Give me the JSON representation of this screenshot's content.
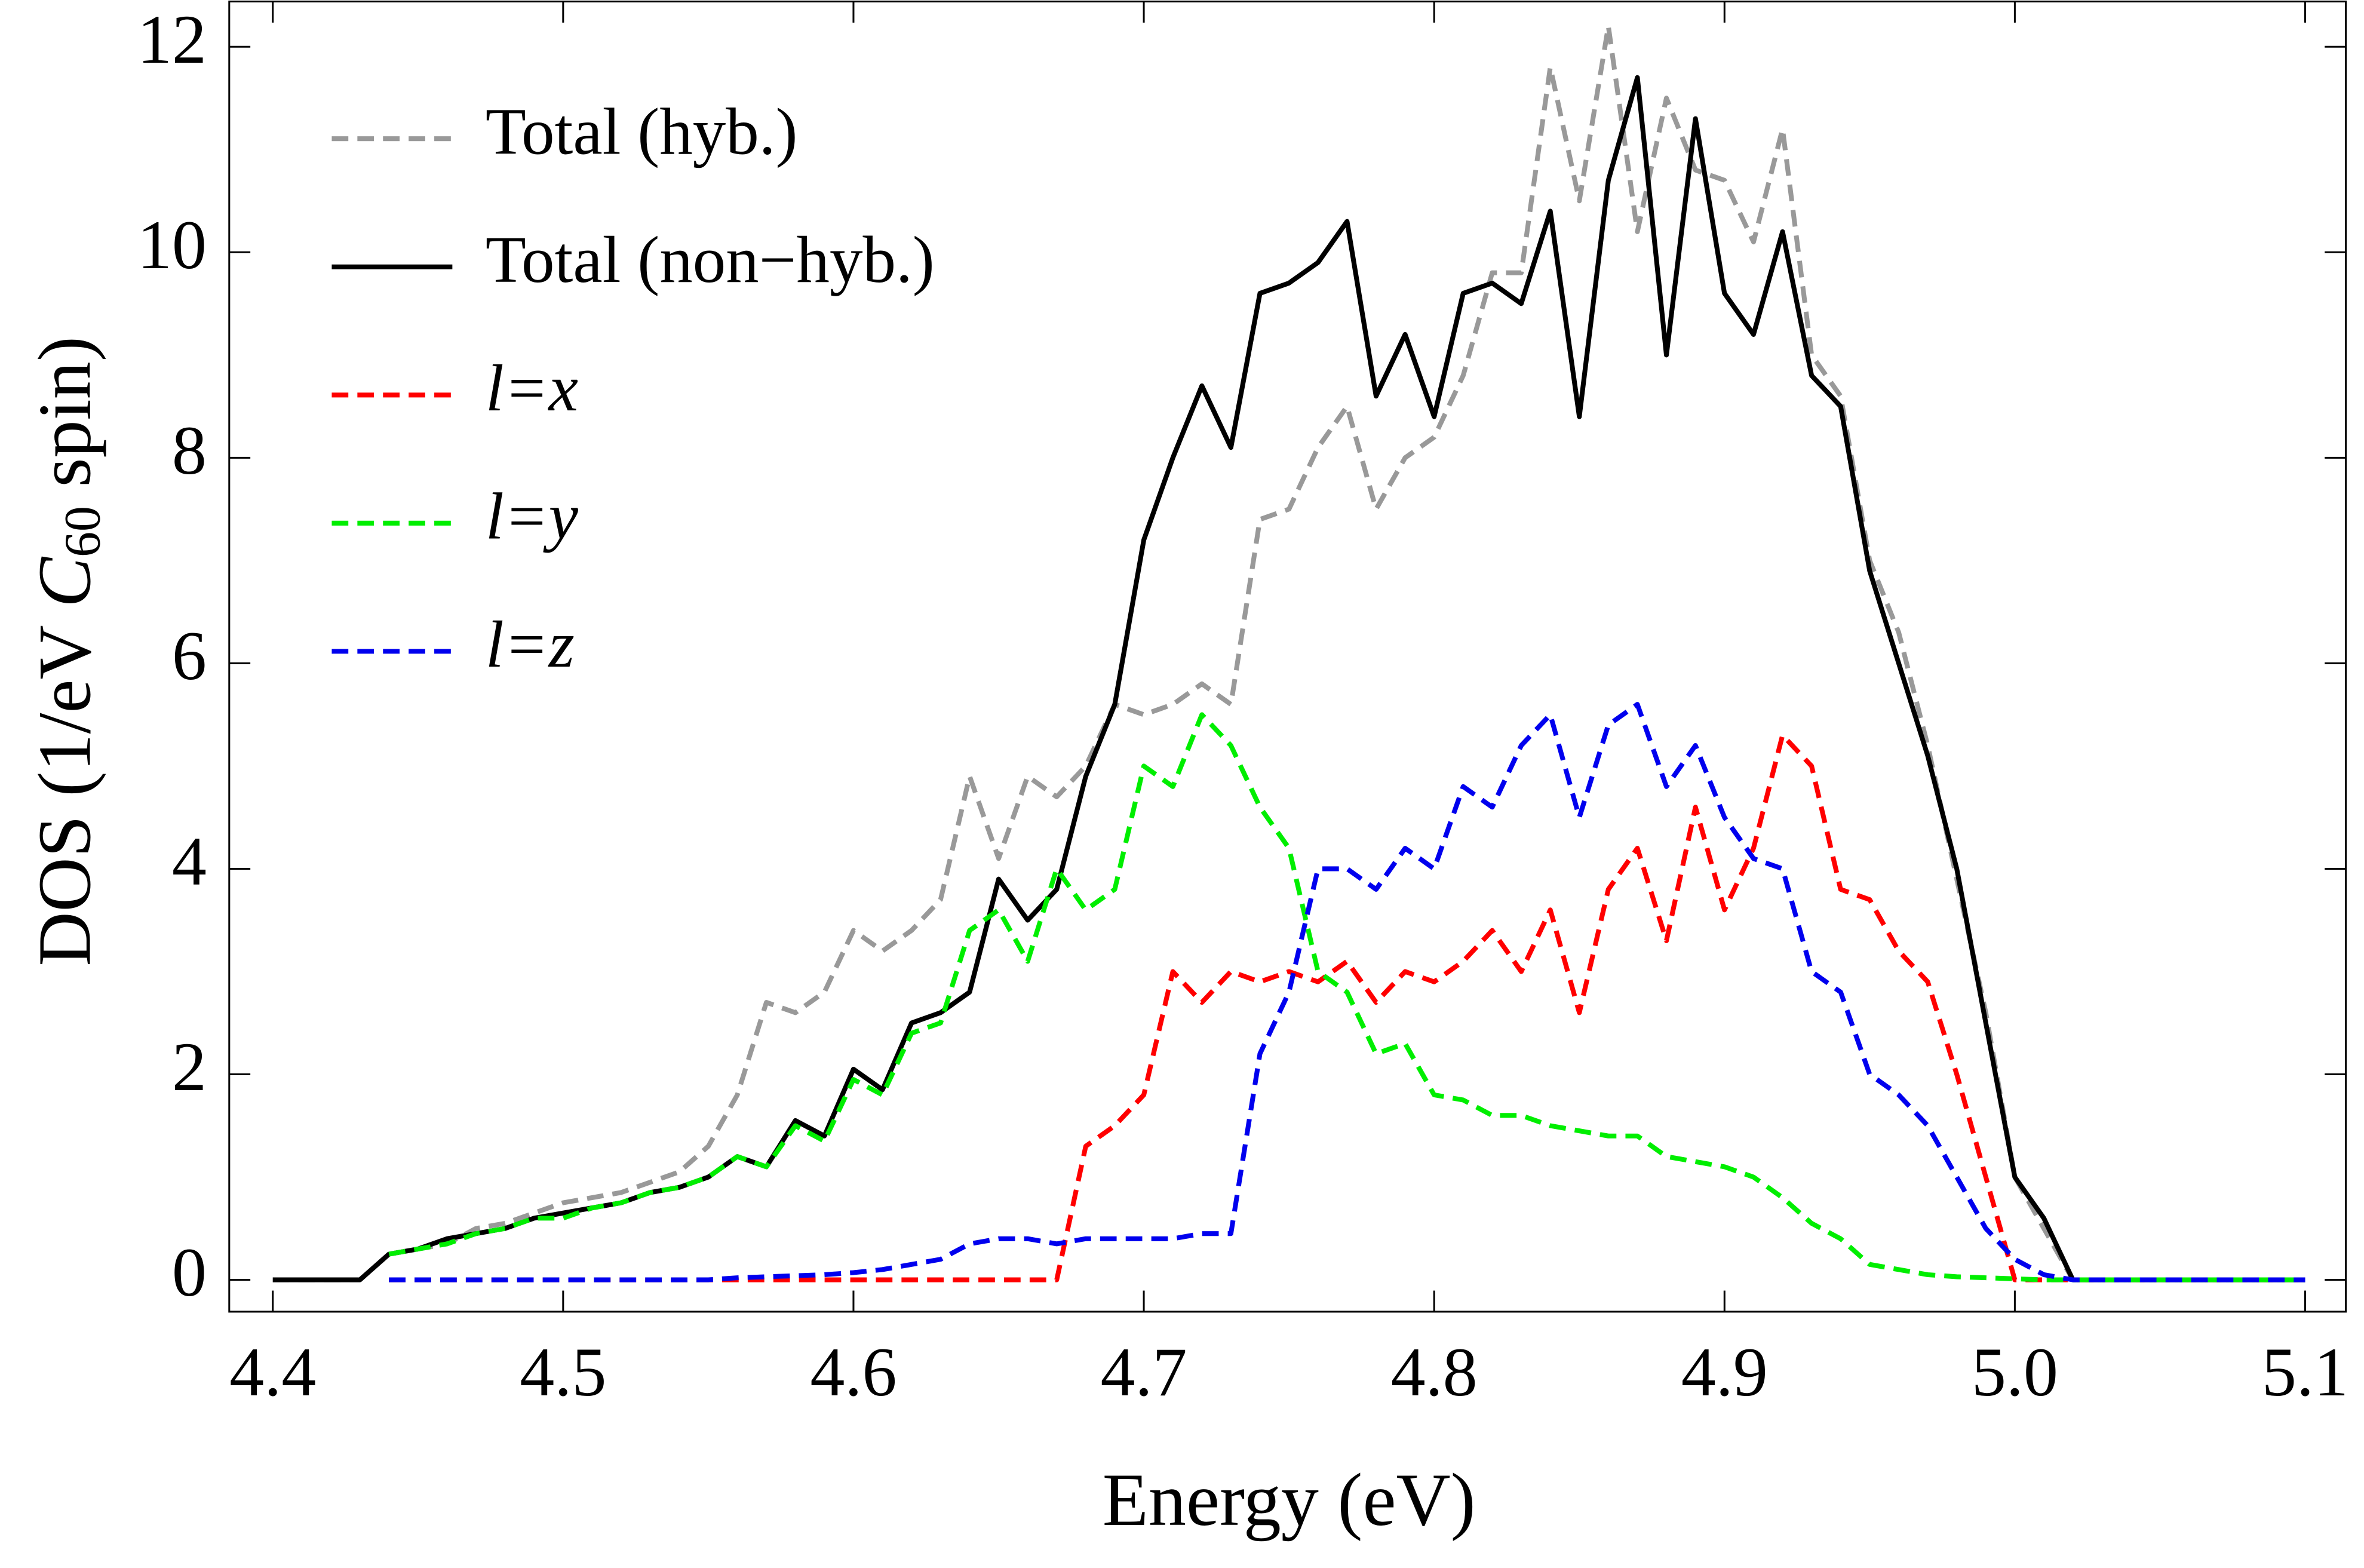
{
  "chart_data": {
    "type": "line",
    "xlabel": "Energy (eV)",
    "ylabel_parts": [
      "DOS (1/eV ",
      "C",
      "60",
      " spin)"
    ],
    "x": [
      4.4,
      4.41,
      4.42,
      4.43,
      4.44,
      4.45,
      4.46,
      4.47,
      4.48,
      4.49,
      4.5,
      4.51,
      4.52,
      4.53,
      4.54,
      4.55,
      4.56,
      4.57,
      4.58,
      4.59,
      4.6,
      4.61,
      4.62,
      4.63,
      4.64,
      4.65,
      4.66,
      4.67,
      4.68,
      4.69,
      4.7,
      4.71,
      4.72,
      4.73,
      4.74,
      4.75,
      4.76,
      4.77,
      4.78,
      4.79,
      4.8,
      4.81,
      4.82,
      4.83,
      4.84,
      4.85,
      4.86,
      4.87,
      4.88,
      4.89,
      4.9,
      4.91,
      4.92,
      4.93,
      4.94,
      4.95,
      4.96,
      4.97,
      4.98,
      4.99,
      5.0,
      5.01,
      5.02,
      5.03,
      5.04,
      5.05,
      5.06,
      5.07,
      5.08,
      5.09,
      5.1
    ],
    "series": [
      {
        "name": "Total (hyb.)",
        "color": "#999999",
        "dashed": true,
        "values": [
          0,
          0,
          0,
          0,
          0.25,
          0.3,
          0.35,
          0.5,
          0.55,
          0.65,
          0.75,
          0.8,
          0.85,
          0.95,
          1.05,
          1.3,
          1.8,
          2.7,
          2.6,
          2.8,
          3.4,
          3.2,
          3.4,
          3.7,
          4.9,
          4.1,
          4.9,
          4.7,
          5.0,
          5.6,
          5.5,
          5.6,
          5.8,
          5.6,
          7.4,
          7.5,
          8.1,
          8.5,
          7.5,
          8.0,
          8.2,
          8.8,
          9.8,
          9.8,
          11.8,
          10.5,
          12.2,
          10.2,
          11.5,
          10.8,
          10.7,
          10.1,
          11.2,
          9.0,
          8.6,
          7.0,
          6.3,
          5.2,
          3.9,
          2.6,
          1.0,
          0.5,
          0,
          0,
          0,
          0,
          0,
          0,
          0,
          0,
          0
        ]
      },
      {
        "name": "Total (non−hyb.)",
        "color": "#000000",
        "dashed": false,
        "values": [
          0,
          0,
          0,
          0,
          0.25,
          0.3,
          0.4,
          0.45,
          0.5,
          0.6,
          0.65,
          0.7,
          0.75,
          0.85,
          0.9,
          1.0,
          1.2,
          1.1,
          1.55,
          1.4,
          2.05,
          1.85,
          2.5,
          2.6,
          2.8,
          3.9,
          3.5,
          3.8,
          4.9,
          5.6,
          7.2,
          8.0,
          8.7,
          8.1,
          9.6,
          9.7,
          9.9,
          10.3,
          8.6,
          9.2,
          8.4,
          9.6,
          9.7,
          9.5,
          10.4,
          8.4,
          10.7,
          11.7,
          9.0,
          11.3,
          9.6,
          9.2,
          10.2,
          8.8,
          8.5,
          6.9,
          6.0,
          5.1,
          4.0,
          2.5,
          1.0,
          0.6,
          0,
          0,
          0,
          0,
          0,
          0,
          0,
          0,
          0
        ]
      },
      {
        "name": "l=x",
        "color": "#ff0000",
        "dashed": true,
        "values": [
          null,
          null,
          null,
          null,
          0,
          0,
          0,
          0,
          0,
          0,
          0,
          0,
          0,
          0,
          0,
          0,
          0,
          0,
          0,
          0,
          0,
          0,
          0,
          0,
          0,
          0,
          0,
          0,
          1.3,
          1.5,
          1.8,
          3.0,
          2.7,
          3.0,
          2.9,
          3.0,
          2.9,
          3.1,
          2.7,
          3.0,
          2.9,
          3.1,
          3.4,
          3.0,
          3.6,
          2.6,
          3.8,
          4.2,
          3.3,
          4.6,
          3.6,
          4.2,
          5.3,
          5.0,
          3.8,
          3.7,
          3.2,
          2.9,
          2.0,
          1.0,
          0,
          0,
          0,
          0,
          0,
          0,
          0,
          0,
          0,
          0,
          0
        ]
      },
      {
        "name": "l=y",
        "color": "#00ee00",
        "dashed": true,
        "values": [
          null,
          null,
          null,
          null,
          0.25,
          0.3,
          0.35,
          0.45,
          0.5,
          0.6,
          0.6,
          0.7,
          0.75,
          0.85,
          0.9,
          1.0,
          1.2,
          1.1,
          1.5,
          1.35,
          1.95,
          1.8,
          2.4,
          2.5,
          3.4,
          3.6,
          3.1,
          4.0,
          3.6,
          3.8,
          5.0,
          4.8,
          5.5,
          5.2,
          4.6,
          4.2,
          3.0,
          2.8,
          2.2,
          2.3,
          1.8,
          1.75,
          1.6,
          1.6,
          1.5,
          1.45,
          1.4,
          1.4,
          1.2,
          1.15,
          1.1,
          1.0,
          0.8,
          0.55,
          0.4,
          0.15,
          0.1,
          0.05,
          0.03,
          0.02,
          0.01,
          0,
          0,
          0,
          0,
          0,
          0,
          0,
          0,
          0,
          0
        ]
      },
      {
        "name": "l=z",
        "color": "#0000ee",
        "dashed": true,
        "values": [
          null,
          null,
          null,
          null,
          0,
          0,
          0,
          0,
          0,
          0,
          0,
          0,
          0,
          0,
          0,
          0,
          0.02,
          0.03,
          0.04,
          0.05,
          0.07,
          0.1,
          0.15,
          0.2,
          0.35,
          0.4,
          0.4,
          0.35,
          0.4,
          0.4,
          0.4,
          0.4,
          0.45,
          0.45,
          2.2,
          2.8,
          4.0,
          4.0,
          3.8,
          4.2,
          4.0,
          4.8,
          4.6,
          5.2,
          5.5,
          4.5,
          5.4,
          5.6,
          4.8,
          5.2,
          4.5,
          4.1,
          4.0,
          3.0,
          2.8,
          2.0,
          1.8,
          1.5,
          1.0,
          0.5,
          0.2,
          0.05,
          0,
          0,
          0,
          0,
          0,
          0,
          0,
          0,
          0
        ]
      }
    ],
    "xlim": [
      4.385,
      5.114
    ],
    "ylim": [
      -0.31,
      12.44
    ],
    "xticks": [
      4.4,
      4.5,
      4.6,
      4.7,
      4.8,
      4.9,
      {
        "value": 5,
        "label": "5.0"
      },
      5.1
    ],
    "yticks": [
      0,
      2,
      4,
      6,
      8,
      10,
      12
    ],
    "legend": "upper-left"
  }
}
